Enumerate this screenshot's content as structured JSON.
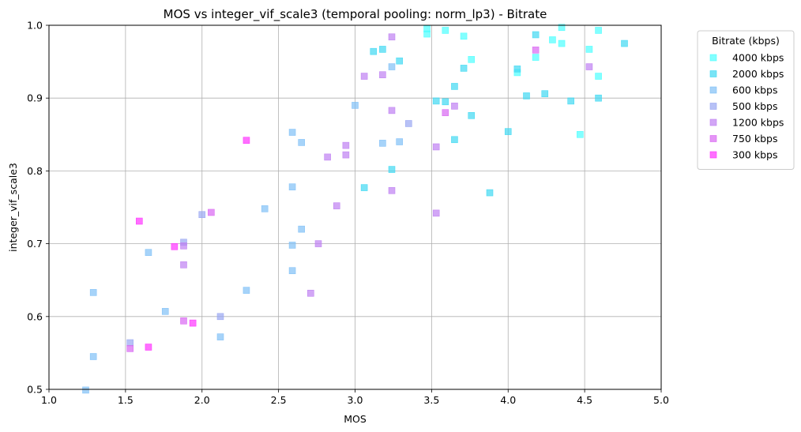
{
  "chart_data": {
    "type": "scatter",
    "title": "MOS vs integer_vif_scale3 (temporal pooling: norm_lp3) - Bitrate",
    "xlabel": "MOS",
    "ylabel": "integer_vif_scale3",
    "xlim": [
      1.0,
      5.0
    ],
    "ylim": [
      0.5,
      1.0
    ],
    "xticks": [
      "1.0",
      "1.5",
      "2.0",
      "2.5",
      "3.0",
      "3.5",
      "4.0",
      "4.5",
      "5.0"
    ],
    "yticks": [
      "0.5",
      "0.6",
      "0.7",
      "0.8",
      "0.9",
      "1.0"
    ],
    "grid": true,
    "legend": {
      "title": "Bitrate (kbps)",
      "placement": "outside-right-top"
    },
    "marker": "square",
    "series": [
      {
        "name": "4000 kbps",
        "color": "#4dffff",
        "points": [
          [
            3.47,
            0.995
          ],
          [
            3.47,
            0.988
          ],
          [
            3.59,
            0.993
          ],
          [
            3.71,
            0.985
          ],
          [
            4.35,
            0.997
          ],
          [
            4.59,
            0.993
          ],
          [
            4.18,
            0.956
          ],
          [
            4.35,
            0.975
          ],
          [
            4.29,
            0.98
          ],
          [
            4.53,
            0.967
          ],
          [
            4.06,
            0.935
          ],
          [
            4.59,
            0.93
          ],
          [
            4.47,
            0.85
          ],
          [
            3.76,
            0.953
          ]
        ]
      },
      {
        "name": "2000 kbps",
        "color": "#40d9f2",
        "points": [
          [
            3.12,
            0.964
          ],
          [
            3.18,
            0.967
          ],
          [
            3.29,
            0.951
          ],
          [
            3.71,
            0.941
          ],
          [
            3.65,
            0.916
          ],
          [
            4.18,
            0.987
          ],
          [
            4.06,
            0.94
          ],
          [
            4.12,
            0.903
          ],
          [
            4.24,
            0.906
          ],
          [
            4.41,
            0.896
          ],
          [
            4.59,
            0.9
          ],
          [
            4.76,
            0.975
          ],
          [
            3.53,
            0.896
          ],
          [
            3.59,
            0.895
          ],
          [
            3.76,
            0.876
          ],
          [
            4.0,
            0.854
          ],
          [
            3.65,
            0.843
          ],
          [
            3.06,
            0.777
          ],
          [
            3.88,
            0.77
          ],
          [
            3.24,
            0.802
          ]
        ]
      },
      {
        "name": "600 kbps",
        "color": "#80c0f7",
        "points": [
          [
            3.0,
            0.89
          ],
          [
            3.24,
            0.943
          ],
          [
            2.59,
            0.853
          ],
          [
            2.65,
            0.839
          ],
          [
            3.18,
            0.838
          ],
          [
            3.29,
            0.84
          ],
          [
            2.59,
            0.778
          ],
          [
            2.41,
            0.748
          ],
          [
            2.65,
            0.72
          ],
          [
            2.59,
            0.698
          ],
          [
            2.59,
            0.663
          ],
          [
            2.29,
            0.636
          ],
          [
            1.65,
            0.688
          ],
          [
            1.29,
            0.633
          ],
          [
            1.76,
            0.607
          ],
          [
            2.12,
            0.572
          ],
          [
            1.29,
            0.545
          ],
          [
            1.24,
            0.499
          ]
        ]
      },
      {
        "name": "500 kbps",
        "color": "#99a6f2",
        "points": [
          [
            2.0,
            0.74
          ],
          [
            1.88,
            0.702
          ],
          [
            2.12,
            0.6
          ],
          [
            1.53,
            0.564
          ],
          [
            3.35,
            0.865
          ]
        ]
      },
      {
        "name": "1200 kbps",
        "color": "#bf80f2",
        "points": [
          [
            3.06,
            0.93
          ],
          [
            3.18,
            0.932
          ],
          [
            3.24,
            0.984
          ],
          [
            3.24,
            0.883
          ],
          [
            3.65,
            0.889
          ],
          [
            3.53,
            0.833
          ],
          [
            2.94,
            0.835
          ],
          [
            2.94,
            0.822
          ],
          [
            2.82,
            0.819
          ],
          [
            3.24,
            0.773
          ],
          [
            2.88,
            0.752
          ],
          [
            3.53,
            0.742
          ],
          [
            2.76,
            0.7
          ],
          [
            2.71,
            0.632
          ],
          [
            1.88,
            0.697
          ],
          [
            1.88,
            0.671
          ],
          [
            4.53,
            0.943
          ]
        ]
      },
      {
        "name": "750 kbps",
        "color": "#d966f2",
        "points": [
          [
            3.59,
            0.88
          ],
          [
            4.18,
            0.966
          ],
          [
            2.06,
            0.743
          ],
          [
            1.88,
            0.594
          ],
          [
            1.53,
            0.556
          ]
        ]
      },
      {
        "name": "300 kbps",
        "color": "#ff33ff",
        "points": [
          [
            2.29,
            0.842
          ],
          [
            1.59,
            0.731
          ],
          [
            1.82,
            0.696
          ],
          [
            1.94,
            0.591
          ],
          [
            1.65,
            0.558
          ]
        ]
      }
    ]
  }
}
